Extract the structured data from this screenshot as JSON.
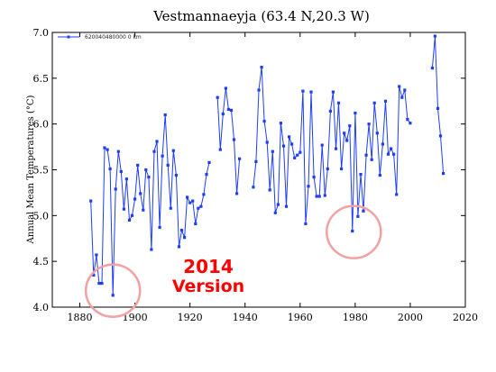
{
  "chart_data": {
    "type": "line",
    "title": "Vestmannaeyja (63.4 N,20.3 W)",
    "xlabel": "",
    "ylabel": "Annual Mean Temperatures (°C)",
    "xlim": [
      1870,
      2020
    ],
    "ylim": [
      4.0,
      7.0
    ],
    "xticks": [
      1880,
      1900,
      1920,
      1940,
      1960,
      1980,
      2000,
      2020
    ],
    "yticks": [
      "4.0",
      "4.5",
      "5.0",
      "5.5",
      "6.0",
      "6.5",
      "7.0"
    ],
    "grid": false,
    "legend_position": "top-left",
    "colors": {
      "series": "#1f3df5",
      "circle": "#f4a0a0",
      "annotation": "#ff0000"
    },
    "series": [
      {
        "name": "620040480000 0 km",
        "segments": [
          [
            [
              1884,
              5.16
            ],
            [
              1885,
              4.35
            ],
            [
              1886,
              4.57
            ],
            [
              1887,
              4.26
            ],
            [
              1888,
              4.26
            ],
            [
              1889,
              5.74
            ],
            [
              1890,
              5.72
            ],
            [
              1891,
              5.51
            ],
            [
              1892,
              4.13
            ],
            [
              1893,
              5.29
            ],
            [
              1894,
              5.7
            ],
            [
              1895,
              5.48
            ],
            [
              1896,
              5.07
            ],
            [
              1897,
              5.4
            ],
            [
              1898,
              4.95
            ],
            [
              1899,
              5.0
            ],
            [
              1900,
              5.18
            ],
            [
              1901,
              5.55
            ],
            [
              1902,
              5.24
            ],
            [
              1903,
              5.06
            ],
            [
              1904,
              5.5
            ],
            [
              1905,
              5.42
            ],
            [
              1906,
              4.63
            ],
            [
              1907,
              5.7
            ],
            [
              1908,
              5.81
            ],
            [
              1909,
              4.87
            ],
            [
              1910,
              5.65
            ],
            [
              1911,
              6.1
            ],
            [
              1912,
              5.55
            ],
            [
              1913,
              5.08
            ],
            [
              1914,
              5.71
            ],
            [
              1915,
              5.44
            ],
            [
              1916,
              4.66
            ],
            [
              1917,
              4.84
            ],
            [
              1918,
              4.76
            ],
            [
              1919,
              5.2
            ],
            [
              1920,
              5.14
            ],
            [
              1921,
              5.16
            ],
            [
              1922,
              4.91
            ],
            [
              1923,
              5.08
            ],
            [
              1924,
              5.1
            ],
            [
              1925,
              5.23
            ],
            [
              1926,
              5.45
            ],
            [
              1927,
              5.58
            ]
          ],
          [
            [
              1930,
              6.29
            ],
            [
              1931,
              5.72
            ],
            [
              1932,
              6.11
            ],
            [
              1933,
              6.39
            ],
            [
              1934,
              6.16
            ],
            [
              1935,
              6.15
            ],
            [
              1936,
              5.83
            ],
            [
              1937,
              5.24
            ],
            [
              1938,
              5.62
            ]
          ],
          [
            [
              1943,
              5.31
            ],
            [
              1944,
              5.59
            ],
            [
              1945,
              6.37
            ],
            [
              1946,
              6.62
            ],
            [
              1947,
              6.03
            ],
            [
              1948,
              5.8
            ],
            [
              1949,
              5.28
            ],
            [
              1950,
              5.7
            ],
            [
              1951,
              5.03
            ],
            [
              1952,
              5.12
            ],
            [
              1953,
              6.01
            ],
            [
              1954,
              5.76
            ],
            [
              1955,
              5.1
            ],
            [
              1956,
              5.86
            ],
            [
              1957,
              5.78
            ],
            [
              1958,
              5.63
            ],
            [
              1959,
              5.66
            ],
            [
              1960,
              5.69
            ],
            [
              1961,
              6.36
            ],
            [
              1962,
              4.91
            ],
            [
              1963,
              5.32
            ],
            [
              1964,
              6.35
            ],
            [
              1965,
              5.42
            ],
            [
              1966,
              5.21
            ],
            [
              1967,
              5.21
            ],
            [
              1968,
              5.77
            ],
            [
              1969,
              5.22
            ],
            [
              1970,
              5.51
            ],
            [
              1971,
              6.14
            ],
            [
              1972,
              6.35
            ],
            [
              1973,
              5.73
            ],
            [
              1974,
              6.23
            ],
            [
              1975,
              5.51
            ],
            [
              1976,
              5.9
            ],
            [
              1977,
              5.82
            ],
            [
              1978,
              5.98
            ],
            [
              1979,
              4.83
            ],
            [
              1980,
              6.12
            ],
            [
              1981,
              4.99
            ],
            [
              1982,
              5.45
            ],
            [
              1983,
              5.05
            ],
            [
              1984,
              5.66
            ],
            [
              1985,
              6.0
            ],
            [
              1986,
              5.61
            ],
            [
              1987,
              6.23
            ],
            [
              1988,
              5.9
            ],
            [
              1989,
              5.44
            ],
            [
              1990,
              5.78
            ],
            [
              1991,
              6.25
            ],
            [
              1992,
              5.67
            ],
            [
              1993,
              5.73
            ],
            [
              1994,
              5.67
            ],
            [
              1995,
              5.23
            ],
            [
              1996,
              6.41
            ],
            [
              1997,
              6.29
            ],
            [
              1998,
              6.37
            ],
            [
              1999,
              6.05
            ],
            [
              2000,
              6.01
            ]
          ],
          [
            [
              2008,
              6.61
            ],
            [
              2009,
              6.96
            ],
            [
              2010,
              6.17
            ],
            [
              2011,
              5.87
            ],
            [
              2012,
              5.46
            ]
          ]
        ]
      }
    ],
    "annotations": {
      "line1": "2014",
      "line2": "Version",
      "circles": [
        {
          "x": 1892,
          "y": 4.18
        },
        {
          "x": 1979.5,
          "y": 4.82
        }
      ]
    }
  }
}
